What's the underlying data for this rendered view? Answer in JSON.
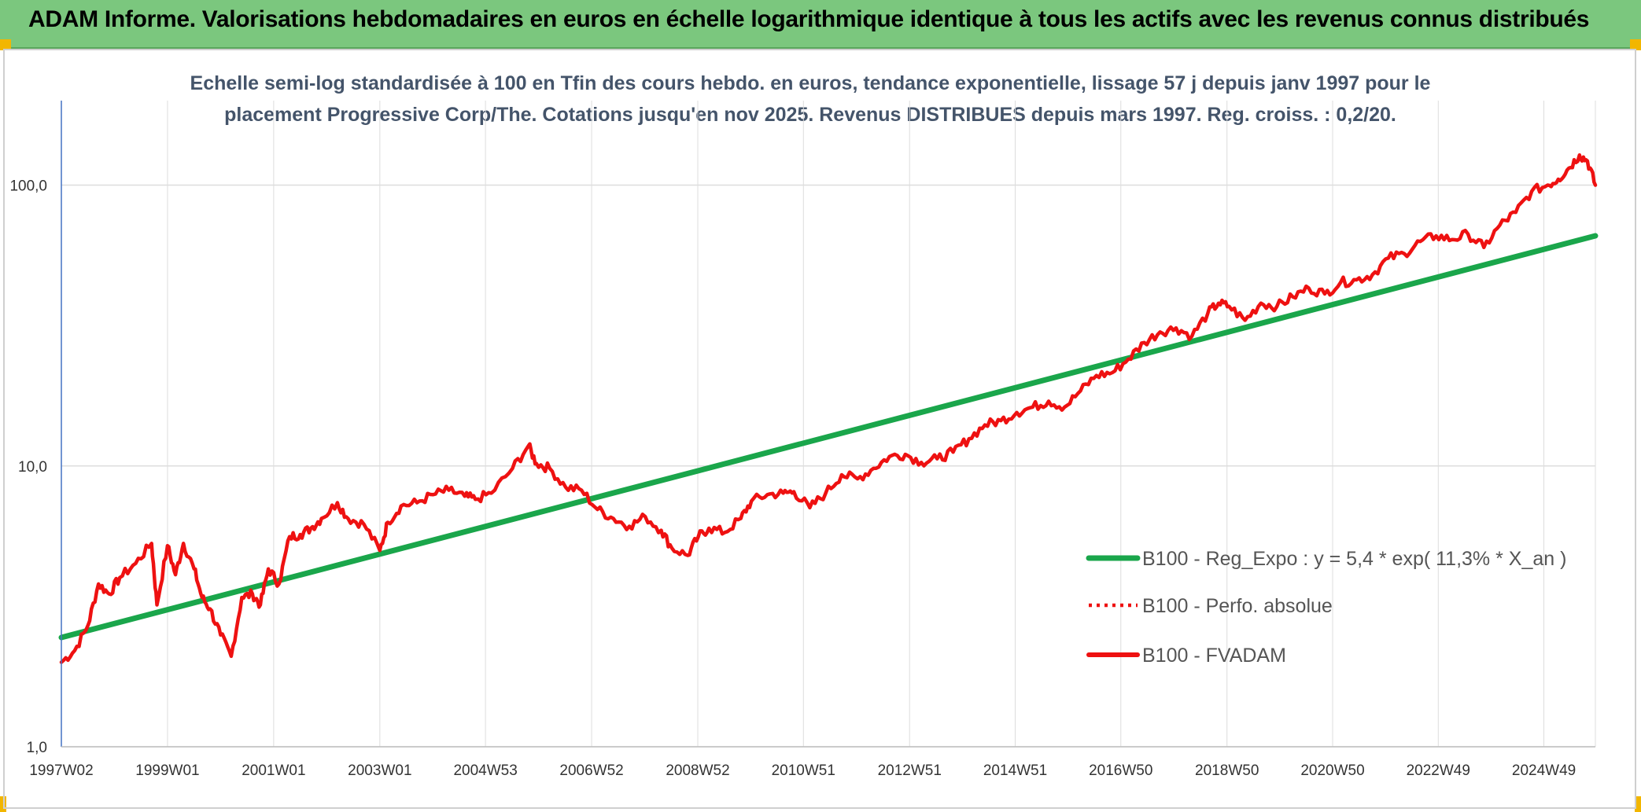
{
  "banner": {
    "title": "ADAM Informe. Valorisations hebdomadaires en euros en échelle logarithmique identique à tous les actifs avec les revenus connus distribués"
  },
  "colors": {
    "banner_bg": "#7bc77e",
    "accent_corner": "#f2b600",
    "title_text": "#44546a",
    "regression_line": "#1aa64b",
    "fvadam_line": "#ee1111",
    "perfo_line": "#ee1111",
    "grid": "#dddddd",
    "axis": "#4472c4"
  },
  "chart_data": {
    "type": "line",
    "title": "Echelle semi-log standardisée à 100 en Tfin des cours hebdo. en euros, tendance exponentielle, lissage 57 j depuis janv 1997 pour le placement Progressive Corp/The. Cotations jusqu'en nov 2025. Revenus DISTRIBUES depuis mars 1997. Reg. croiss. : 0,2/20.",
    "y_scale": "log",
    "ylim": [
      1,
      200
    ],
    "y_ticks": [
      1,
      10,
      100
    ],
    "y_tick_labels": [
      "1,0",
      "10,0",
      "100,0"
    ],
    "xlim": [
      1997.0,
      2025.9
    ],
    "x_ticks": [
      1997.0,
      1999.0,
      2001.0,
      2003.0,
      2004.99,
      2006.99,
      2008.99,
      2010.98,
      2012.98,
      2014.97,
      2016.96,
      2018.96,
      2020.95,
      2022.94,
      2024.93
    ],
    "x_tick_labels": [
      "1997W02",
      "1999W01",
      "2001W01",
      "2003W01",
      "2004W53",
      "2006W52",
      "2008W52",
      "2010W51",
      "2012W51",
      "2014W51",
      "2016W50",
      "2018W50",
      "2020W50",
      "2022W49",
      "2024W49"
    ],
    "legend_position": "right",
    "series": [
      {
        "name": "B100 - Reg_Expo : y = 5,4 * exp( 11,3% *  X_an )",
        "style": "solid-thick",
        "x": [
          1997.0,
          2025.9
        ],
        "values": [
          2.45,
          66.0
        ]
      },
      {
        "name": "B100 - Perfo. absolue",
        "style": "dotted",
        "x": [],
        "values": []
      },
      {
        "name": "B100 - FVADAM",
        "style": "solid",
        "x": [
          1997.0,
          1997.25,
          1997.5,
          1997.7,
          1997.9,
          1998.1,
          1998.4,
          1998.7,
          1998.8,
          1999.0,
          1999.15,
          1999.3,
          1999.5,
          1999.65,
          1999.8,
          2000.0,
          2000.2,
          2000.4,
          2000.6,
          2000.75,
          2000.9,
          2001.1,
          2001.3,
          2001.5,
          2001.7,
          2001.9,
          2002.2,
          2002.4,
          2002.7,
          2003.0,
          2003.15,
          2003.4,
          2003.7,
          2004.0,
          2004.3,
          2004.6,
          2004.8,
          2005.1,
          2005.5,
          2005.8,
          2005.95,
          2006.2,
          2006.5,
          2006.8,
          2007.1,
          2007.4,
          2007.7,
          2008.0,
          2008.3,
          2008.5,
          2008.8,
          2009.0,
          2009.2,
          2009.5,
          2009.8,
          2010.0,
          2010.3,
          2010.6,
          2010.8,
          2011.1,
          2011.4,
          2011.7,
          2012.0,
          2012.3,
          2012.6,
          2012.9,
          2013.2,
          2013.5,
          2013.8,
          2014.1,
          2014.4,
          2014.7,
          2015.0,
          2015.3,
          2015.6,
          2015.9,
          2016.2,
          2016.5,
          2016.8,
          2017.1,
          2017.4,
          2017.7,
          2018.0,
          2018.3,
          2018.6,
          2018.8,
          2019.0,
          2019.3,
          2019.6,
          2019.9,
          2020.2,
          2020.5,
          2020.8,
          2021.1,
          2021.4,
          2021.7,
          2022.0,
          2022.3,
          2022.6,
          2022.9,
          2023.2,
          2023.5,
          2023.8,
          2024.1,
          2024.4,
          2024.7,
          2025.0,
          2025.2,
          2025.4,
          2025.6,
          2025.75,
          2025.9
        ],
        "values": [
          2.0,
          2.2,
          2.7,
          3.8,
          3.5,
          4.0,
          4.5,
          5.3,
          3.2,
          5.2,
          4.1,
          5.3,
          4.3,
          3.4,
          3.1,
          2.5,
          2.1,
          3.4,
          3.5,
          3.2,
          4.3,
          3.8,
          5.6,
          5.7,
          6.0,
          6.5,
          7.4,
          6.5,
          6.2,
          5.0,
          6.3,
          7.2,
          7.4,
          7.9,
          8.2,
          7.8,
          7.6,
          8.0,
          9.8,
          11.8,
          10.2,
          9.8,
          8.4,
          8.2,
          7.0,
          6.5,
          6.1,
          6.6,
          5.9,
          5.1,
          4.8,
          5.6,
          6.0,
          5.8,
          6.5,
          7.5,
          7.9,
          8.0,
          8.1,
          7.1,
          8.0,
          9.3,
          9.0,
          9.8,
          10.8,
          11.0,
          10.3,
          10.6,
          11.2,
          12.5,
          14.0,
          14.5,
          15.5,
          16.2,
          17.0,
          16.2,
          18.5,
          21.0,
          21.5,
          24.0,
          27.5,
          30.0,
          31.0,
          29.0,
          35.0,
          38.0,
          37.0,
          33.0,
          38.0,
          37.0,
          40.0,
          43.0,
          41.0,
          45.0,
          46.0,
          48.0,
          55.0,
          57.0,
          63.0,
          66.0,
          64.0,
          67.0,
          60.0,
          72.0,
          80.0,
          95.0,
          100.0,
          105.0,
          115.0,
          128.0,
          122.0,
          100.0
        ]
      }
    ]
  }
}
